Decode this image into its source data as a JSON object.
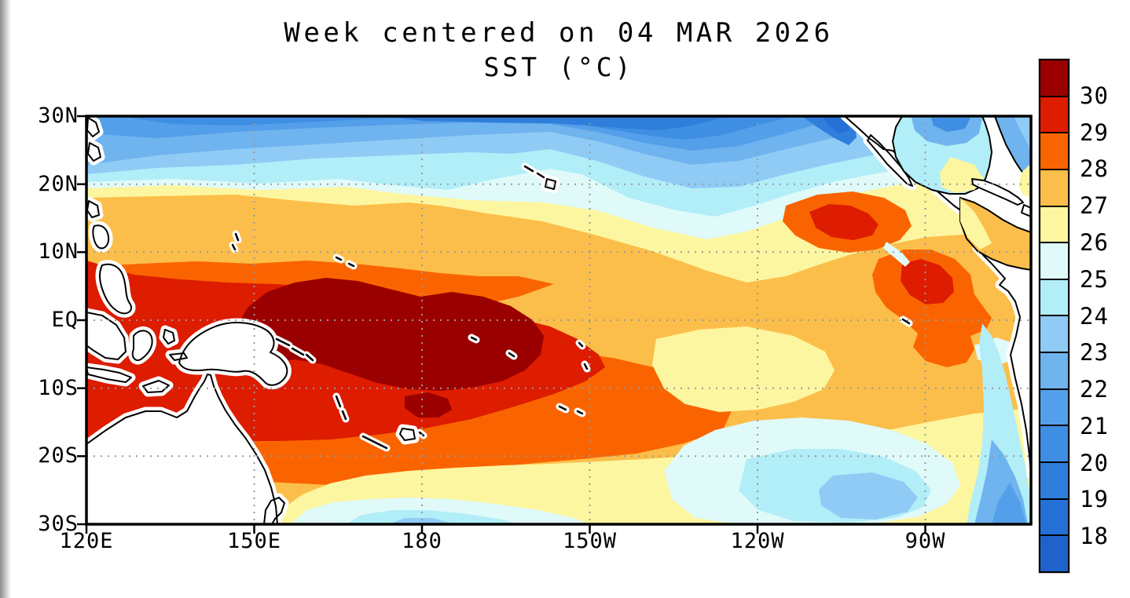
{
  "title": {
    "line1": "Week centered on 04 MAR 2026",
    "line2": "SST (°C)"
  },
  "axes": {
    "lat_labels": [
      "30N",
      "20N",
      "10N",
      "EQ",
      "10S",
      "20S",
      "30S"
    ],
    "lon_labels": [
      "120E",
      "150E",
      "180",
      "150W",
      "120W",
      "90W"
    ]
  },
  "colorbar": {
    "labels": [
      "30",
      "29",
      "28",
      "27",
      "26",
      "25",
      "24",
      "23",
      "22",
      "21",
      "20",
      "19",
      "18"
    ],
    "colors": [
      "#9B0000",
      "#DD1C00",
      "#FA6400",
      "#FCBE4A",
      "#FDF6A0",
      "#E0FAFA",
      "#B2EEF8",
      "#8FCBF5",
      "#6FB3EF",
      "#539FE9",
      "#3E8EE3",
      "#2F7EDB",
      "#2470D6",
      "#1E63CC"
    ]
  },
  "map": {
    "land_color": "#ffffff",
    "coast_color": "#000000",
    "grid_color": "#999999",
    "frame_color": "#000000",
    "background": "#ffffff"
  },
  "chart_data": {
    "type": "heatmap",
    "title": "Week centered on 04 MAR 2026",
    "subtitle": "SST (°C)",
    "variable": "sea surface temperature",
    "units": "°C",
    "x_axis": {
      "label": "longitude",
      "tick_labels": [
        "120E",
        "150E",
        "180",
        "150W",
        "120W",
        "90W"
      ],
      "range": "120E to 80W"
    },
    "y_axis": {
      "label": "latitude",
      "tick_labels": [
        "30N",
        "20N",
        "10N",
        "EQ",
        "10S",
        "20S",
        "30S"
      ],
      "range": "30S to 30N"
    },
    "contour_levels_c": [
      18,
      19,
      20,
      21,
      22,
      23,
      24,
      25,
      26,
      27,
      28,
      29,
      30
    ],
    "band_colors": [
      "#9B0000",
      "#DD1C00",
      "#FA6400",
      "#FCBE4A",
      "#FDF6A0",
      "#E0FAFA",
      "#B2EEF8",
      "#8FCBF5",
      "#6FB3EF",
      "#539FE9",
      "#3E8EE3",
      "#2F7EDB",
      "#2470D6",
      "#1E63CC"
    ],
    "legend_position": "right",
    "grid": "dotted",
    "features": [
      "Warm pool exceeding 30°C in the western equatorial Pacific near 150E-180, 0-12S, including the Gulf of Carpentaria",
      "Broad 29-30°C water spanning the western and central South Pacific from New Guinea east to about 140W between the equator and 20S",
      "28-29°C tongue extending along 5-10N from the Philippine Sea to about 160W",
      "Warm 28-30°C patches off the Mexican coast near 12N 105W and off Panama/Ecuador near 3N-5S 80-95W",
      "Cool 18-24°C water across the North Pacific along 22-30N, coldest near the North American coast",
      "Cool subtropical pool of 22-26°C water in the southeast Pacific near 18-30S, 80-105W and along the Chile coast",
      "Gulf of Mexico 22-26°C, Caribbean 26-28°C"
    ]
  }
}
